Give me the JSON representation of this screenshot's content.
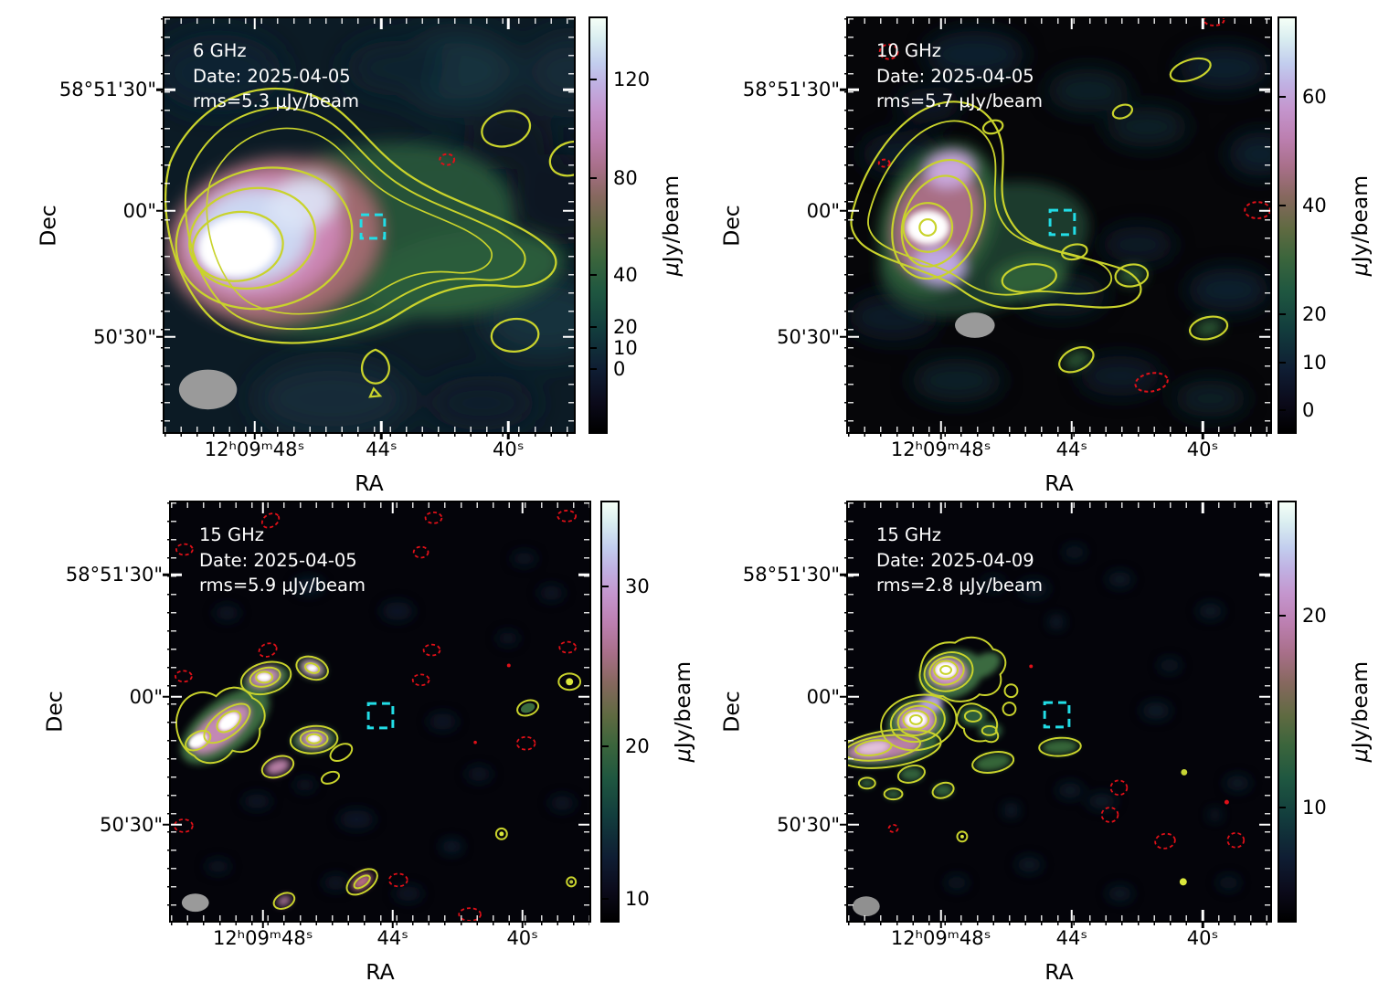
{
  "shared": {
    "x_label": "RA",
    "y_label": "Dec",
    "x_ticks": [
      "12ʰ09ᵐ48ˢ",
      "44ˢ",
      "40ˢ"
    ],
    "x_tick_pos_pct": [
      22,
      53,
      84
    ],
    "y_ticks": [
      "58°51'30\"",
      "00\"",
      "50'30\""
    ],
    "y_tick_pos_pct": [
      17.3,
      46.5,
      77.0
    ],
    "colorbar_unit": "μJy/beam",
    "colors": {
      "contour_positive": "#c9d32c",
      "contour_negative": "#e01018",
      "target_marker": "#22dde6",
      "beam": "#9a9a9a",
      "annotation_text": "#ffffff",
      "colormap": "cubehelix"
    }
  },
  "panels": [
    {
      "frequency": "6 GHz",
      "date": "Date: 2025-04-05",
      "rms": "rms=5.3 μJy/beam",
      "colorbar": {
        "ticks": [
          {
            "label": "0",
            "pos_pct": 15.3
          },
          {
            "label": "10",
            "pos_pct": 20.4
          },
          {
            "label": "20",
            "pos_pct": 25.5
          },
          {
            "label": "40",
            "pos_pct": 37.9
          },
          {
            "label": "80",
            "pos_pct": 61.3
          },
          {
            "label": "120",
            "pos_pct": 85.3
          }
        ]
      }
    },
    {
      "frequency": "10 GHz",
      "date": "Date: 2025-04-05",
      "rms": "rms=5.7 μJy/beam",
      "colorbar": {
        "ticks": [
          {
            "label": "0",
            "pos_pct": 5.3
          },
          {
            "label": "10",
            "pos_pct": 16.8
          },
          {
            "label": "20",
            "pos_pct": 28.4
          },
          {
            "label": "40",
            "pos_pct": 54.7
          },
          {
            "label": "60",
            "pos_pct": 81.0
          }
        ]
      }
    },
    {
      "frequency": "15 GHz",
      "date": "Date: 2025-04-05",
      "rms": "rms=5.9 μJy/beam",
      "colorbar": {
        "ticks": [
          {
            "label": "10",
            "pos_pct": 5.2
          },
          {
            "label": "20",
            "pos_pct": 41.8
          },
          {
            "label": "30",
            "pos_pct": 79.9
          }
        ]
      }
    },
    {
      "frequency": "15 GHz",
      "date": "Date: 2025-04-09",
      "rms": "rms=2.8 μJy/beam",
      "colorbar": {
        "ticks": [
          {
            "label": "10",
            "pos_pct": 27.0
          },
          {
            "label": "20",
            "pos_pct": 73.0
          }
        ]
      }
    }
  ],
  "chart_data": [
    {
      "type": "heatmap",
      "panel": "top-left",
      "title": "6 GHz",
      "annotations": [
        "6 GHz",
        "Date: 2025-04-05",
        "rms=5.3 μJy/beam"
      ],
      "xlabel": "RA",
      "ylabel": "Dec",
      "x_tick_labels": [
        "12h09m48s",
        "44s",
        "40s"
      ],
      "y_tick_labels": [
        "58°51'30\"",
        "00\"",
        "50'30\""
      ],
      "colorbar": {
        "label": "μJy/beam",
        "tick_values": [
          0,
          10,
          20,
          40,
          80,
          120
        ],
        "range_estimate": [
          -27,
          145
        ],
        "colormap": "cubehelix"
      },
      "overlays": [
        "yellow solid positive contours",
        "red dashed negative contour",
        "cyan dashed square target marker near RA 12h09m44s Dec 58°51'00\"",
        "gray synthesized-beam ellipse lower-left"
      ],
      "content": "Bright extended radio source east of the target marker with a tail extending west; peak near 140 μJy/beam; two faint yellow-contour knots on the west side"
    },
    {
      "type": "heatmap",
      "panel": "top-right",
      "title": "10 GHz",
      "annotations": [
        "10 GHz",
        "Date: 2025-04-05",
        "rms=5.7 μJy/beam"
      ],
      "xlabel": "RA",
      "ylabel": "Dec",
      "x_tick_labels": [
        "12h09m48s",
        "44s",
        "40s"
      ],
      "y_tick_labels": [
        "58°51'30\"",
        "00\"",
        "50'30\""
      ],
      "colorbar": {
        "label": "μJy/beam",
        "tick_values": [
          0,
          10,
          20,
          40,
          60
        ],
        "range_estimate": [
          -4,
          75
        ],
        "colormap": "cubehelix"
      },
      "overlays": [
        "yellow solid positive contours",
        "red dashed negative contours",
        "cyan dashed square target marker",
        "gray synthesized-beam ellipse"
      ],
      "content": "Compact bright core with short extension to the east-southeast; several faint contour islands; peak near 70 μJy/beam"
    },
    {
      "type": "heatmap",
      "panel": "bottom-left",
      "title": "15 GHz (2025-04-05)",
      "annotations": [
        "15 GHz",
        "Date: 2025-04-05",
        "rms=5.9 μJy/beam"
      ],
      "xlabel": "RA",
      "ylabel": "Dec",
      "x_tick_labels": [
        "12h09m48s",
        "44s",
        "40s"
      ],
      "y_tick_labels": [
        "58°51'30\"",
        "00\"",
        "50'30\""
      ],
      "colorbar": {
        "label": "μJy/beam",
        "tick_values": [
          10,
          20,
          30
        ],
        "range_estimate": [
          8,
          36
        ],
        "colormap": "cubehelix"
      },
      "overlays": [
        "yellow solid positive contours",
        "many small red dashed negative contours",
        "cyan dashed square target marker",
        "gray synthesized-beam ellipse"
      ],
      "content": "Source breaks into a chain of compact knots northeast of center; scattered noise peaks; peak near 35 μJy/beam"
    },
    {
      "type": "heatmap",
      "panel": "bottom-right",
      "title": "15 GHz (2025-04-09)",
      "annotations": [
        "15 GHz",
        "Date: 2025-04-09",
        "rms=2.8 μJy/beam"
      ],
      "xlabel": "RA",
      "ylabel": "Dec",
      "x_tick_labels": [
        "12h09m48s",
        "44s",
        "40s"
      ],
      "y_tick_labels": [
        "58°51'30\"",
        "00\"",
        "50'30\""
      ],
      "colorbar": {
        "label": "μJy/beam",
        "tick_values": [
          10,
          20
        ],
        "range_estimate": [
          0,
          27
        ],
        "colormap": "cubehelix"
      },
      "overlays": [
        "yellow solid positive contours",
        "red dashed negative contours",
        "cyan dashed square target marker",
        "gray synthesized-beam ellipse"
      ],
      "content": "Two strong compact knots with concentric contours plus a pink tail to the southwest; fainter contour islands toward the target marker"
    }
  ]
}
